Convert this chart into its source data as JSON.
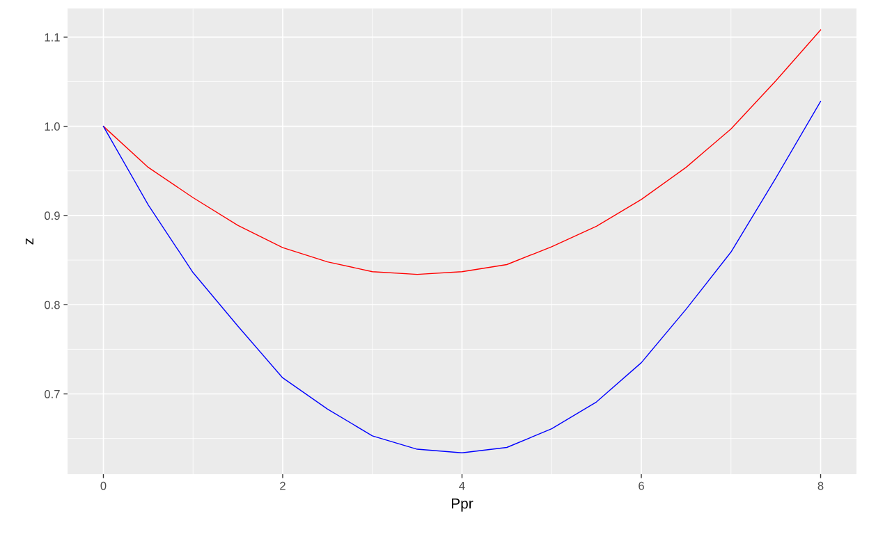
{
  "chart_data": {
    "type": "line",
    "xlabel": "Ppr",
    "ylabel": "z",
    "x": [
      0,
      0.5,
      1,
      1.5,
      2,
      2.5,
      3,
      3.5,
      4,
      4.5,
      5,
      5.5,
      6,
      6.5,
      7,
      7.5,
      8
    ],
    "series": [
      {
        "color": "#ff0000",
        "values": [
          1.0,
          0.954,
          0.92,
          0.889,
          0.864,
          0.848,
          0.837,
          0.834,
          0.837,
          0.845,
          0.865,
          0.888,
          0.918,
          0.954,
          0.997,
          1.051,
          1.108
        ]
      },
      {
        "color": "#0000ff",
        "values": [
          1.0,
          0.912,
          0.836,
          0.776,
          0.718,
          0.683,
          0.653,
          0.638,
          0.634,
          0.64,
          0.661,
          0.691,
          0.735,
          0.795,
          0.859,
          0.942,
          1.028
        ]
      }
    ],
    "xlim": [
      -0.4,
      8.4
    ],
    "xticks": [
      0,
      2,
      4,
      6,
      8
    ],
    "ylim": [
      0.61,
      1.132
    ],
    "yticks": [
      0.7,
      0.8,
      0.9,
      {
        "value": 1.0,
        "label": "1.0"
      },
      1.1
    ],
    "grid": true,
    "legend": false,
    "marker": "none",
    "line_style": "solid"
  }
}
